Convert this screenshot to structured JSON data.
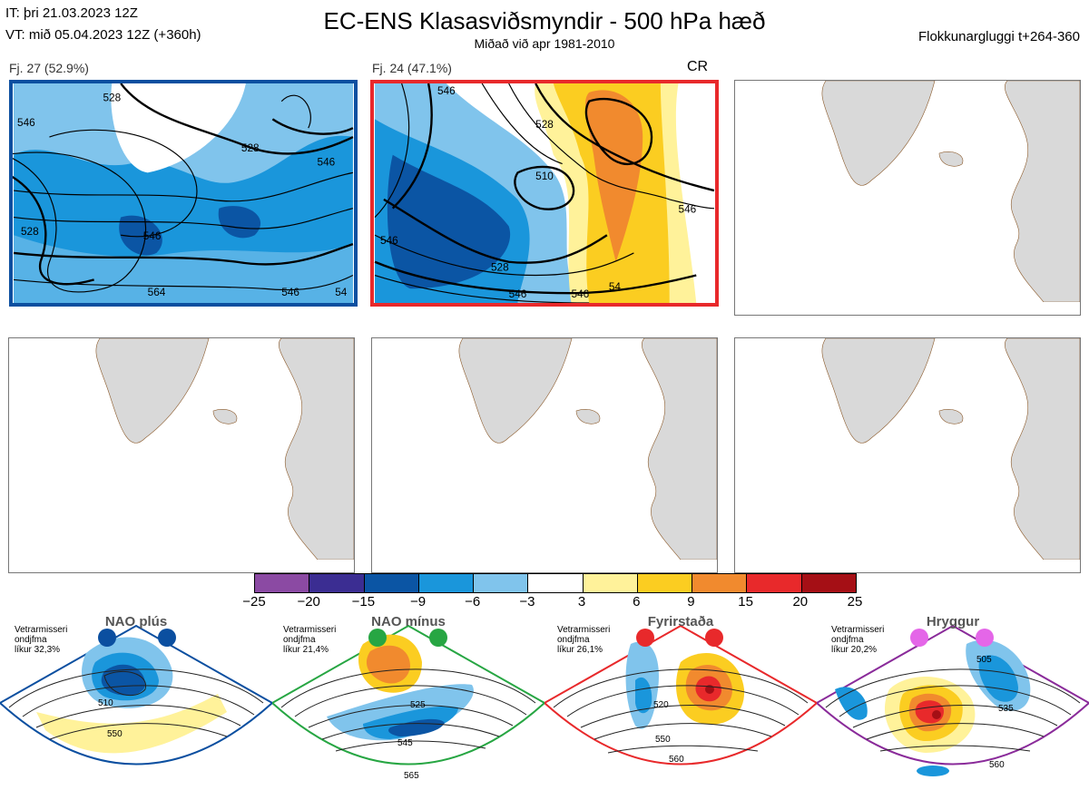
{
  "header": {
    "it_line": "IT: þri 21.03.2023 12Z",
    "vt_line": "VT: mið 05.04.2023 12Z  (+360h)",
    "title": "EC-ENS Klasasviðsmyndir - 500 hPa hæð",
    "subtitle": "Miðað við apr 1981-2010",
    "window": "Flokkunargluggi t+264-360"
  },
  "clusters": [
    {
      "label": "Fj. 27 (52.9%)",
      "border_color": "#0b4fa0",
      "contours": [
        "546",
        "528",
        "528",
        "546",
        "528",
        "546",
        "564",
        "546",
        "54"
      ]
    },
    {
      "label": "Fj. 24 (47.1%)",
      "border_color": "#e8292b",
      "extra": "CR",
      "contours": [
        "546",
        "528",
        "510",
        "546",
        "546",
        "528",
        "546",
        "546",
        "54"
      ]
    }
  ],
  "colorbar": {
    "colors": [
      "#8b4aa3",
      "#3b2d92",
      "#0b55a4",
      "#1a96db",
      "#80c4ec",
      "#ffffff",
      "#fff29a",
      "#fbcd21",
      "#f18a2e",
      "#e8292b",
      "#a50f15"
    ],
    "ticks": [
      "−25",
      "−20",
      "−15",
      "−9",
      "−6",
      "−3",
      "3",
      "6",
      "9",
      "15",
      "20",
      "25"
    ]
  },
  "regimes": [
    {
      "name": "NAO plús",
      "prob_lines": [
        "Vetrarmisseri",
        "ondjfma",
        "líkur 32,3%"
      ],
      "color": "#0b4fa0",
      "contours": [
        "510",
        "550"
      ]
    },
    {
      "name": "NAO mínus",
      "prob_lines": [
        "Vetrarmisseri",
        "ondjfma",
        "líkur 21,4%"
      ],
      "color": "#27a643",
      "contours": [
        "525",
        "545",
        "565"
      ]
    },
    {
      "name": "Fyrirstaða",
      "prob_lines": [
        "Vetrarmisseri",
        "ondjfma",
        "líkur 26,1%"
      ],
      "color": "#e8292b",
      "contours": [
        "520",
        "550",
        "560"
      ]
    },
    {
      "name": "Hryggur",
      "prob_lines": [
        "Vetrarmisseri",
        "ondjfma",
        "líkur 20,2%"
      ],
      "color": "#e466e8",
      "contours": [
        "505",
        "535",
        "560"
      ]
    }
  ]
}
